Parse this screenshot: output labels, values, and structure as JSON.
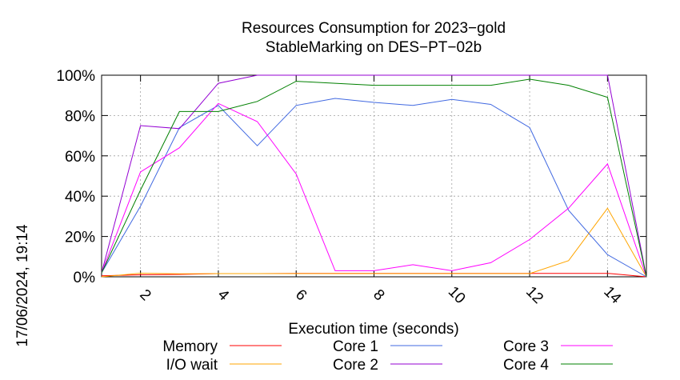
{
  "side_label": "17/06/2024, 19:14",
  "chart_data": {
    "type": "line",
    "title_lines": [
      "Resources Consumption for 2023−gold",
      "StableMarking on DES−PT−02b"
    ],
    "xlabel": "Execution time (seconds)",
    "ylabel": "",
    "xlim": [
      1,
      15
    ],
    "ylim": [
      0,
      100
    ],
    "x_ticks": [
      2,
      4,
      6,
      8,
      10,
      12,
      14
    ],
    "y_ticks": [
      0,
      20,
      40,
      60,
      80,
      100
    ],
    "y_tick_labels": [
      "0%",
      "20%",
      "40%",
      "60%",
      "80%",
      "100%"
    ],
    "grid": true,
    "legend_position": "bottom",
    "x": [
      1,
      2,
      3,
      4,
      5,
      6,
      7,
      8,
      9,
      10,
      11,
      12,
      13,
      14,
      15
    ],
    "series": [
      {
        "name": "Memory",
        "color": "#ff0000",
        "values": [
          0.5,
          1,
          1.2,
          1.6,
          1.6,
          1.7,
          1.7,
          1.7,
          1.7,
          1.7,
          1.7,
          1.7,
          1.7,
          1.7,
          0
        ]
      },
      {
        "name": "I/O wait",
        "color": "#ffa500",
        "values": [
          0,
          1.8,
          1.5,
          1.6,
          1.6,
          1.6,
          1.6,
          1.6,
          1.6,
          1.6,
          1.6,
          1.6,
          8,
          34,
          0
        ]
      },
      {
        "name": "Core 1",
        "color": "#4169e1",
        "values": [
          2,
          35,
          74,
          85,
          65,
          85,
          88.5,
          86.5,
          85,
          88,
          85.5,
          74,
          33,
          11,
          0
        ]
      },
      {
        "name": "Core 2",
        "color": "#9400d3",
        "values": [
          2,
          75,
          73.5,
          96,
          100,
          100,
          100,
          100,
          100,
          100,
          100,
          100,
          100,
          100,
          0
        ]
      },
      {
        "name": "Core 3",
        "color": "#ff00ff",
        "values": [
          2,
          52,
          64,
          86,
          77,
          51,
          3,
          3,
          6,
          3,
          7,
          18.5,
          34,
          56,
          0
        ]
      },
      {
        "name": "Core 4",
        "color": "#008000",
        "values": [
          2,
          43,
          82,
          82,
          87,
          97,
          96,
          95,
          95,
          95,
          95,
          98,
          95,
          89,
          0
        ]
      }
    ],
    "legend_layout": [
      [
        "Memory",
        "Core 1",
        "Core 3"
      ],
      [
        "I/O wait",
        "Core 2",
        "Core 4"
      ]
    ]
  }
}
